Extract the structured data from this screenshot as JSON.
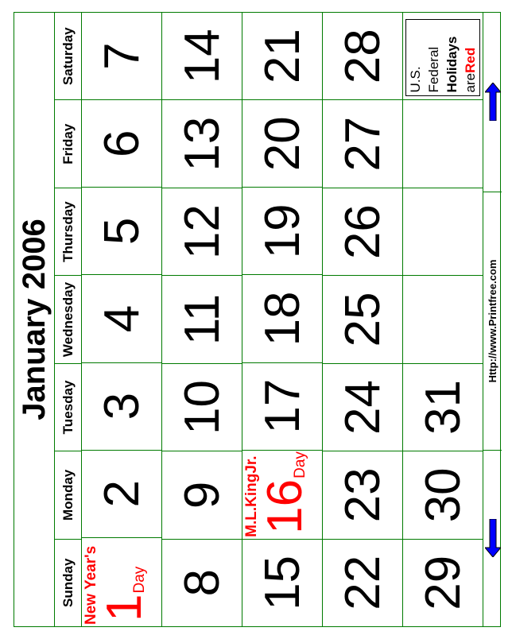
{
  "title": "January 2006",
  "days": [
    "Sunday",
    "Monday",
    "Tuesday",
    "Wednesday",
    "Thursday",
    "Friday",
    "Saturday"
  ],
  "weeks": [
    [
      "1",
      "2",
      "3",
      "4",
      "5",
      "6",
      "7"
    ],
    [
      "8",
      "9",
      "10",
      "11",
      "12",
      "13",
      "14"
    ],
    [
      "15",
      "16",
      "17",
      "18",
      "19",
      "20",
      "21"
    ],
    [
      "22",
      "23",
      "24",
      "25",
      "26",
      "27",
      "28"
    ],
    [
      "29",
      "30",
      "31",
      "",
      "",
      "",
      ""
    ]
  ],
  "holidays": {
    "new_year": {
      "date": "1",
      "label_top": "New Year's",
      "label_bottom": "Day"
    },
    "mlk": {
      "date": "16",
      "label_top": "M.L.KingJr.",
      "label_bottom": "Day"
    }
  },
  "legend": {
    "line1": "U.S.",
    "line2": "Federal",
    "line3": "Holidays",
    "line4_a": "are",
    "line4_b": "Red"
  },
  "footer": {
    "url": "Http://www.Printfree.com",
    "prev_icon": "arrow-down-icon",
    "next_icon": "arrow-up-icon"
  },
  "colors": {
    "grid": "#007a00",
    "holiday": "#ff0000",
    "arrow": "#0000ff"
  }
}
